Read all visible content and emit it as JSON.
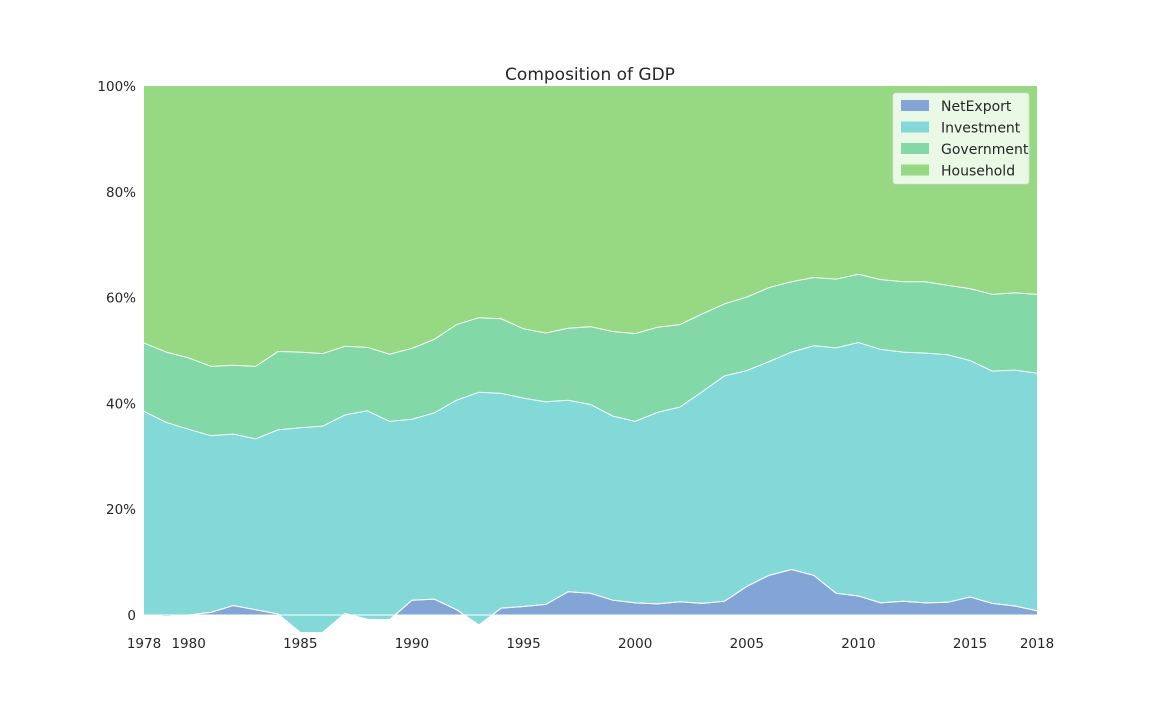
{
  "chart_data": {
    "type": "area",
    "stacked": true,
    "normalized": true,
    "title": "Composition of GDP",
    "xlabel": "",
    "ylabel": "",
    "x": [
      1978,
      1979,
      1980,
      1981,
      1982,
      1983,
      1984,
      1985,
      1986,
      1987,
      1988,
      1989,
      1990,
      1991,
      1992,
      1993,
      1994,
      1995,
      1996,
      1997,
      1998,
      1999,
      2000,
      2001,
      2002,
      2003,
      2004,
      2005,
      2006,
      2007,
      2008,
      2009,
      2010,
      2011,
      2012,
      2013,
      2014,
      2015,
      2016,
      2017,
      2018
    ],
    "x_ticks": [
      "1978",
      "1980",
      "1985",
      "1990",
      "1995",
      "2000",
      "2005",
      "2010",
      "2015",
      "2018"
    ],
    "x_tick_values": [
      1978,
      1980,
      1985,
      1990,
      1995,
      2000,
      2005,
      2010,
      2015,
      2018
    ],
    "xlim": [
      1978,
      2018
    ],
    "y_ticks": [
      "0",
      "20%",
      "40%",
      "60%",
      "80%",
      "100%"
    ],
    "y_tick_values": [
      0,
      20,
      40,
      60,
      80,
      100
    ],
    "ylim": [
      -3,
      100
    ],
    "grid": false,
    "legend_position": "top-right",
    "series": [
      {
        "name": "NetExport",
        "color": "#82a4d6",
        "values": [
          0.0,
          -0.3,
          0.0,
          0.5,
          1.8,
          1.0,
          0.2,
          -3.3,
          -3.3,
          0.3,
          -0.8,
          -0.9,
          2.8,
          3.0,
          1.0,
          -1.9,
          1.3,
          1.6,
          2.0,
          4.4,
          4.1,
          2.8,
          2.3,
          2.1,
          2.5,
          2.2,
          2.6,
          5.4,
          7.5,
          8.6,
          7.5,
          4.1,
          3.6,
          2.3,
          2.6,
          2.3,
          2.4,
          3.4,
          2.2,
          1.7,
          0.8
        ]
      },
      {
        "name": "Investment",
        "color": "#82d9d8",
        "values": [
          38.5,
          36.7,
          35.1,
          33.4,
          32.4,
          32.3,
          34.8,
          38.7,
          39.0,
          37.5,
          39.4,
          37.5,
          34.2,
          35.2,
          39.6,
          44.0,
          40.6,
          39.4,
          38.3,
          36.2,
          35.7,
          34.8,
          34.3,
          36.2,
          36.8,
          40.0,
          42.6,
          40.8,
          40.4,
          41.1,
          43.4,
          46.4,
          47.9,
          47.9,
          47.1,
          47.2,
          46.8,
          44.7,
          43.9,
          44.6,
          44.9
        ]
      },
      {
        "name": "Government",
        "color": "#82d8a6",
        "values": [
          12.9,
          13.3,
          13.5,
          13.1,
          13.0,
          13.7,
          14.8,
          14.3,
          13.7,
          13.0,
          12.0,
          12.7,
          13.4,
          13.9,
          14.3,
          14.1,
          14.1,
          13.1,
          13.0,
          13.6,
          14.7,
          16.0,
          16.6,
          16.1,
          15.6,
          14.7,
          13.6,
          13.9,
          14.0,
          13.3,
          12.9,
          13.0,
          12.9,
          13.2,
          13.3,
          13.5,
          13.1,
          13.6,
          14.5,
          14.6,
          14.9
        ]
      },
      {
        "name": "Household",
        "color": "#96d982",
        "values": [
          48.6,
          50.3,
          51.4,
          53.0,
          52.8,
          53.0,
          50.2,
          50.3,
          50.6,
          49.2,
          49.4,
          50.7,
          49.6,
          47.9,
          45.1,
          43.8,
          44.0,
          45.9,
          46.7,
          45.8,
          45.5,
          46.4,
          46.8,
          45.6,
          45.1,
          43.1,
          41.2,
          39.9,
          38.1,
          37.0,
          36.2,
          36.5,
          35.6,
          36.6,
          37.0,
          37.0,
          37.7,
          38.3,
          39.4,
          39.1,
          39.4
        ]
      }
    ]
  }
}
